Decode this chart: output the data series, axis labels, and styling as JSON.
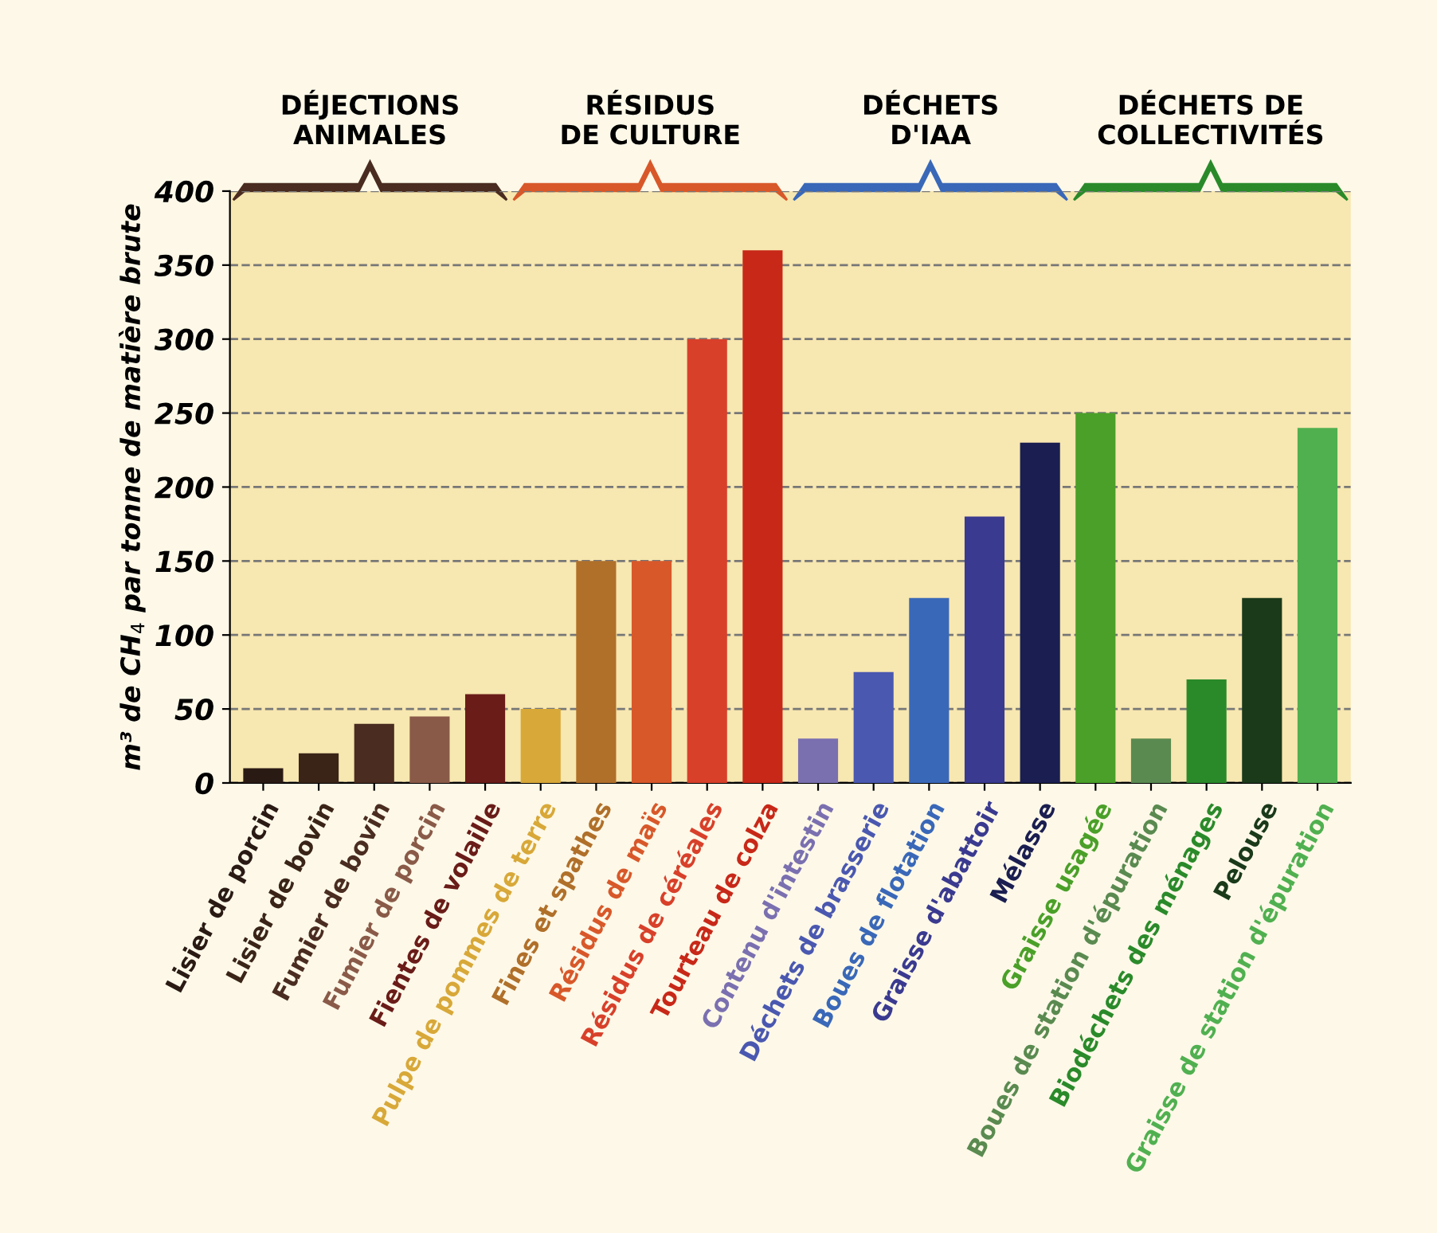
{
  "chart_data": {
    "type": "bar",
    "ylabel": "m³ de CH$_{4}$ par tonne de matière brute",
    "categories": [
      "Lisier de porcin",
      "Lisier de bovin",
      "Fumier de bovin",
      "Fumier de porcin",
      "Fientes de volaille",
      "Pulpe de pommes de terre",
      "Fines et spathes",
      "Résidus de maïs",
      "Résidus de céréales",
      "Tourteau de colza",
      "Contenu d'intestin",
      "Déchets de brasserie",
      "Boues de flotation",
      "Graisse d'abattoir",
      "Mélasse",
      "Graisse usagée",
      "Boues de station d'épuration",
      "Biodéchets des ménages",
      "Pelouse",
      "Graisse de station d'épuration"
    ],
    "values": [
      10,
      20,
      40,
      45,
      60,
      50,
      150,
      150,
      300,
      360,
      30,
      75,
      125,
      180,
      230,
      250,
      30,
      70,
      125,
      240
    ],
    "colors": [
      "#2a1a14",
      "#3a2418",
      "#4a2c20",
      "#8a5a48",
      "#6a1c18",
      "#d8a838",
      "#b0702a",
      "#d8582a",
      "#d8402a",
      "#c82818",
      "#7a70b0",
      "#4a58b0",
      "#3a68b8",
      "#3a3a90",
      "#1a1e50",
      "#4aa028",
      "#5a8a50",
      "#2a8a2a",
      "#1a3a1a",
      "#50b050"
    ],
    "ylim": [
      0,
      400
    ],
    "yticks": [
      0,
      50,
      100,
      150,
      200,
      250,
      300,
      350,
      400
    ],
    "grid": "y",
    "annotations": [
      "DÉJECTIONS\nANIMALES",
      "RÉSIDUS\nDE CULTURE",
      "DÉCHETS\nD'IAA",
      "DÉCHETS DE\nCOLLECTIVITÉS"
    ]
  }
}
